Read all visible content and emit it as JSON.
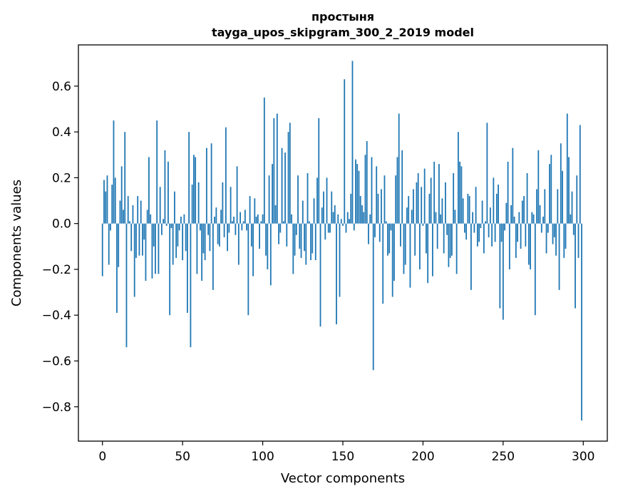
{
  "chart_data": {
    "type": "bar",
    "title": "простыня",
    "subtitle": "tayga_upos_skipgram_300_2_2019 model",
    "xlabel": "Vector components",
    "ylabel": "Components values",
    "xlim": [
      -15,
      315
    ],
    "ylim": [
      -0.95,
      0.78
    ],
    "xticks": [
      0,
      50,
      100,
      150,
      200,
      250,
      300
    ],
    "yticks": [
      -0.8,
      -0.6,
      -0.4,
      -0.2,
      0.0,
      0.2,
      0.4,
      0.6
    ],
    "ytick_labels": [
      "−0.8",
      "−0.6",
      "−0.4",
      "−0.2",
      "0.0",
      "0.2",
      "0.4",
      "0.6"
    ],
    "bar_color": "#1f77b4",
    "grid": false,
    "x": "0..299",
    "values": [
      -0.23,
      0.19,
      0.14,
      0.21,
      -0.18,
      -0.03,
      0.17,
      0.45,
      0.2,
      -0.39,
      -0.19,
      0.1,
      0.25,
      0.06,
      0.4,
      -0.54,
      0.12,
      0.01,
      -0.12,
      0.08,
      -0.32,
      -0.15,
      0.12,
      -0.14,
      0.1,
      -0.14,
      -0.07,
      -0.25,
      0.06,
      0.29,
      0.04,
      -0.24,
      -0.1,
      -0.22,
      0.45,
      -0.22,
      0.16,
      -0.05,
      0.02,
      0.32,
      -0.01,
      0.27,
      -0.4,
      -0.02,
      -0.18,
      0.14,
      -0.15,
      -0.1,
      -0.03,
      0.03,
      -0.16,
      0.04,
      -0.12,
      -0.39,
      0.4,
      -0.54,
      0.17,
      0.3,
      0.29,
      -0.22,
      0.18,
      -0.03,
      -0.25,
      -0.13,
      -0.16,
      0.33,
      -0.05,
      -0.12,
      0.35,
      -0.29,
      0.03,
      0.07,
      -0.09,
      -0.1,
      0.06,
      0.18,
      -0.06,
      0.42,
      -0.12,
      -0.04,
      0.16,
      0.01,
      0.03,
      -0.05,
      0.25,
      -0.18,
      0.05,
      -0.03,
      0.01,
      0.06,
      -0.03,
      -0.4,
      0.12,
      -0.1,
      -0.23,
      0.11,
      0.03,
      0.04,
      -0.11,
      0.01,
      0.04,
      0.55,
      -0.14,
      -0.2,
      0.21,
      -0.27,
      0.26,
      0.46,
      0.08,
      0.48,
      -0.09,
      -0.04,
      0.33,
      0.01,
      0.31,
      -0.1,
      0.4,
      0.44,
      0.04,
      -0.22,
      -0.14,
      -0.05,
      0.21,
      -0.11,
      -0.15,
      0.1,
      -0.12,
      -0.18,
      0.22,
      0.01,
      -0.16,
      -0.13,
      0.11,
      -0.16,
      0.2,
      0.46,
      -0.45,
      0.07,
      0.14,
      -0.07,
      0.2,
      -0.04,
      -0.04,
      0.14,
      0.05,
      0.08,
      -0.44,
      0.04,
      -0.32,
      0.02,
      -0.01,
      0.63,
      -0.04,
      0.05,
      0.02,
      0.13,
      0.71,
      -0.03,
      0.28,
      0.26,
      0.23,
      0.12,
      0.08,
      0.05,
      0.3,
      0.36,
      -0.09,
      0.04,
      0.29,
      -0.64,
      -0.06,
      0.25,
      0.13,
      -0.08,
      0.15,
      -0.35,
      0.21,
      0.01,
      -0.14,
      -0.13,
      -0.03,
      -0.32,
      -0.25,
      0.21,
      0.29,
      0.48,
      -0.1,
      0.32,
      -0.22,
      -0.18,
      0.07,
      0.12,
      -0.28,
      0.06,
      0.15,
      -0.14,
      0.18,
      0.22,
      -0.2,
      0.16,
      -0.01,
      0.24,
      -0.13,
      -0.26,
      0.13,
      0.2,
      -0.23,
      0.27,
      0.05,
      -0.11,
      0.26,
      0.04,
      0.11,
      -0.13,
      0.18,
      -0.05,
      -0.19,
      -0.15,
      -0.14,
      0.22,
      0.06,
      -0.22,
      0.4,
      0.27,
      0.25,
      0.11,
      -0.04,
      -0.07,
      0.13,
      0.12,
      -0.29,
      0.05,
      -0.04,
      0.16,
      -0.1,
      -0.08,
      -0.02,
      0.1,
      -0.13,
      0.01,
      0.44,
      -0.06,
      0.07,
      -0.1,
      0.2,
      -0.08,
      0.13,
      0.17,
      -0.37,
      -0.08,
      -0.42,
      -0.03,
      0.09,
      0.27,
      -0.2,
      0.08,
      0.33,
      0.03,
      -0.15,
      -0.08,
      0.05,
      -0.11,
      0.1,
      0.12,
      -0.1,
      0.22,
      -0.18,
      -0.2,
      0.05,
      0.04,
      -0.4,
      0.15,
      0.32,
      0.08,
      -0.04,
      0.03,
      0.15,
      -0.13,
      -0.04,
      0.26,
      0.3,
      -0.09,
      -0.06,
      -0.14,
      0.15,
      -0.29,
      0.35,
      0.23,
      -0.15,
      -0.11,
      0.48,
      0.29,
      0.04,
      0.14,
      -0.05,
      -0.37,
      0.21,
      -0.15,
      0.43,
      -0.86
    ]
  }
}
